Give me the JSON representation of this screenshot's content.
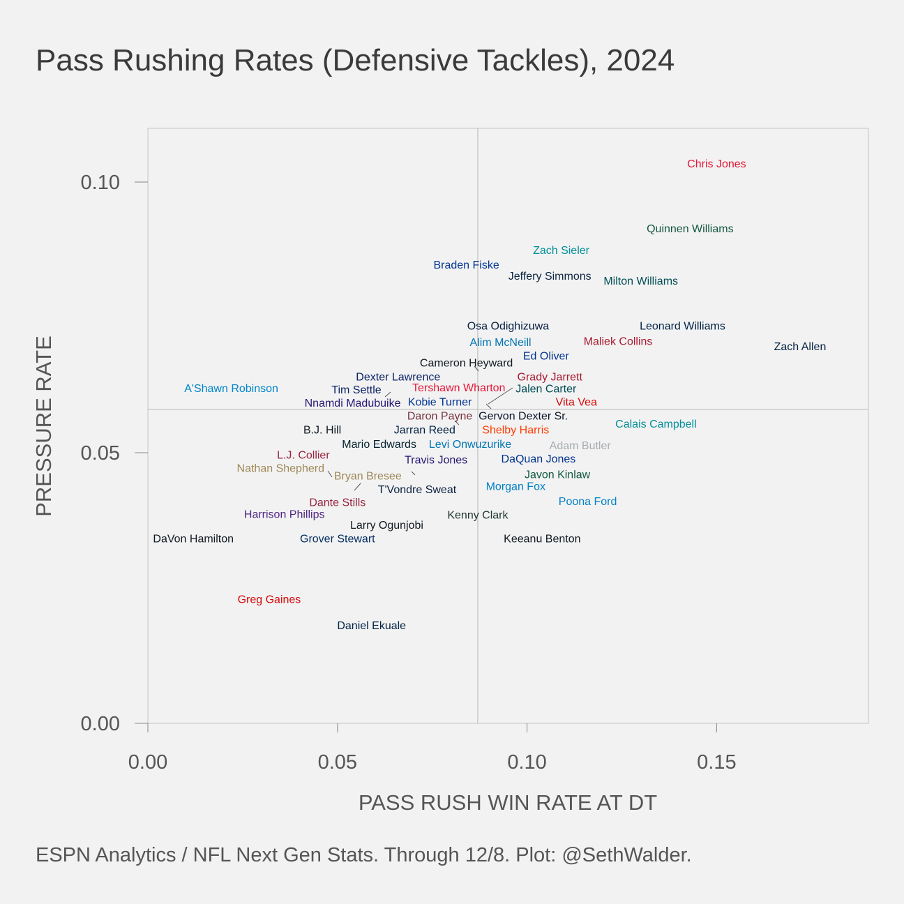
{
  "chart_data": {
    "type": "scatter",
    "title": "Pass Rushing Rates (Defensive Tackles), 2024",
    "xlabel": "PASS RUSH WIN RATE AT DT",
    "ylabel": "PRESSURE RATE",
    "xlim": [
      0.0,
      0.19
    ],
    "ylim": [
      0.0,
      0.11
    ],
    "x_ticks": [
      "0.00",
      "0.05",
      "0.10",
      "0.15"
    ],
    "y_ticks": [
      "0.00",
      "0.05",
      "0.10"
    ],
    "x_tick_values": [
      0.0,
      0.05,
      0.1,
      0.15
    ],
    "y_tick_values": [
      0.0,
      0.05,
      0.1
    ],
    "reference_lines": {
      "x": 0.087,
      "y": 0.058
    },
    "grid": false,
    "points": [
      {
        "name": "Chris Jones",
        "x": 0.15,
        "y": 0.1035,
        "color": "#e31837"
      },
      {
        "name": "Quinnen Williams",
        "x": 0.143,
        "y": 0.0915,
        "color": "#125740"
      },
      {
        "name": "Zach Sieler",
        "x": 0.109,
        "y": 0.0875,
        "color": "#008e97"
      },
      {
        "name": "Braden Fiske",
        "x": 0.084,
        "y": 0.0848,
        "color": "#003594"
      },
      {
        "name": "Jeffery Simmons",
        "x": 0.106,
        "y": 0.0827,
        "color": "#0c2340"
      },
      {
        "name": "Milton Williams",
        "x": 0.13,
        "y": 0.0818,
        "color": "#004c54"
      },
      {
        "name": "Osa Odighizuwa",
        "x": 0.095,
        "y": 0.0735,
        "color": "#041e42"
      },
      {
        "name": "Leonard Williams",
        "x": 0.141,
        "y": 0.0735,
        "color": "#002244"
      },
      {
        "name": "Alim McNeill",
        "x": 0.093,
        "y": 0.0705,
        "color": "#0076b6"
      },
      {
        "name": "Maliek Collins",
        "x": 0.124,
        "y": 0.0707,
        "color": "#a71930"
      },
      {
        "name": "Zach Allen",
        "x": 0.172,
        "y": 0.0697,
        "color": "#002244"
      },
      {
        "name": "Ed Oliver",
        "x": 0.105,
        "y": 0.068,
        "color": "#00338d"
      },
      {
        "name": "Cameron Heyward",
        "x": 0.084,
        "y": 0.0667,
        "color": "#101820"
      },
      {
        "name": "Dexter Lawrence",
        "x": 0.066,
        "y": 0.0641,
        "color": "#0b2265"
      },
      {
        "name": "Grady Jarrett",
        "x": 0.106,
        "y": 0.0641,
        "color": "#a71930"
      },
      {
        "name": "A'Shawn Robinson",
        "x": 0.022,
        "y": 0.062,
        "color": "#0085ca"
      },
      {
        "name": "Tim Settle",
        "x": 0.055,
        "y": 0.0617,
        "color": "#0b2265"
      },
      {
        "name": "Tershawn Wharton",
        "x": 0.082,
        "y": 0.0621,
        "color": "#e31837"
      },
      {
        "name": "Jalen Carter",
        "x": 0.105,
        "y": 0.0619,
        "color": "#004c54"
      },
      {
        "name": "Nnamdi Madubuike",
        "x": 0.054,
        "y": 0.0593,
        "color": "#241773"
      },
      {
        "name": "Kobie Turner",
        "x": 0.077,
        "y": 0.0595,
        "color": "#003594"
      },
      {
        "name": "Vita Vea",
        "x": 0.113,
        "y": 0.0595,
        "color": "#d50a0a"
      },
      {
        "name": "Daron Payne",
        "x": 0.077,
        "y": 0.0569,
        "color": "#773141"
      },
      {
        "name": "Gervon Dexter Sr.",
        "x": 0.099,
        "y": 0.0569,
        "color": "#0b162a"
      },
      {
        "name": "B.J. Hill",
        "x": 0.046,
        "y": 0.0543,
        "color": "#101820"
      },
      {
        "name": "Jarran Reed",
        "x": 0.073,
        "y": 0.0543,
        "color": "#002244"
      },
      {
        "name": "Shelby Harris",
        "x": 0.097,
        "y": 0.0543,
        "color": "#ff3c00"
      },
      {
        "name": "Calais Campbell",
        "x": 0.134,
        "y": 0.0554,
        "color": "#008e97"
      },
      {
        "name": "Mario Edwards",
        "x": 0.061,
        "y": 0.0517,
        "color": "#03202f"
      },
      {
        "name": "Levi Onwuzurike",
        "x": 0.085,
        "y": 0.0517,
        "color": "#0076b6"
      },
      {
        "name": "Adam Butler",
        "x": 0.114,
        "y": 0.0514,
        "color": "#a5acaf"
      },
      {
        "name": "L.J. Collier",
        "x": 0.041,
        "y": 0.0497,
        "color": "#97233f"
      },
      {
        "name": "Nathan Shepherd",
        "x": 0.035,
        "y": 0.0472,
        "color": "#9f8958"
      },
      {
        "name": "Travis Jones",
        "x": 0.076,
        "y": 0.0488,
        "color": "#241773"
      },
      {
        "name": "DaQuan Jones",
        "x": 0.103,
        "y": 0.049,
        "color": "#00338d"
      },
      {
        "name": "Bryan Bresee",
        "x": 0.058,
        "y": 0.0458,
        "color": "#9f8958"
      },
      {
        "name": "Javon Kinlaw",
        "x": 0.108,
        "y": 0.0461,
        "color": "#125740"
      },
      {
        "name": "T'Vondre Sweat",
        "x": 0.071,
        "y": 0.0433,
        "color": "#0c2340"
      },
      {
        "name": "Morgan Fox",
        "x": 0.097,
        "y": 0.0439,
        "color": "#0080c6"
      },
      {
        "name": "Dante Stills",
        "x": 0.05,
        "y": 0.0409,
        "color": "#97233f"
      },
      {
        "name": "Poona Ford",
        "x": 0.116,
        "y": 0.0411,
        "color": "#0080c6"
      },
      {
        "name": "Harrison Phillips",
        "x": 0.036,
        "y": 0.0387,
        "color": "#4f2683"
      },
      {
        "name": "Kenny Clark",
        "x": 0.087,
        "y": 0.0386,
        "color": "#203731"
      },
      {
        "name": "Larry Ogunjobi",
        "x": 0.063,
        "y": 0.0367,
        "color": "#101820"
      },
      {
        "name": "DaVon Hamilton",
        "x": 0.012,
        "y": 0.0342,
        "color": "#101820"
      },
      {
        "name": "Grover Stewart",
        "x": 0.05,
        "y": 0.0342,
        "color": "#002c5f"
      },
      {
        "name": "Keeanu Benton",
        "x": 0.104,
        "y": 0.0342,
        "color": "#101820"
      },
      {
        "name": "Greg Gaines",
        "x": 0.032,
        "y": 0.023,
        "color": "#d50a0a"
      },
      {
        "name": "Daniel Ekuale",
        "x": 0.059,
        "y": 0.0182,
        "color": "#002244"
      }
    ]
  },
  "caption": "ESPN Analytics / NFL Next Gen Stats. Through 12/8. Plot: @SethWalder."
}
